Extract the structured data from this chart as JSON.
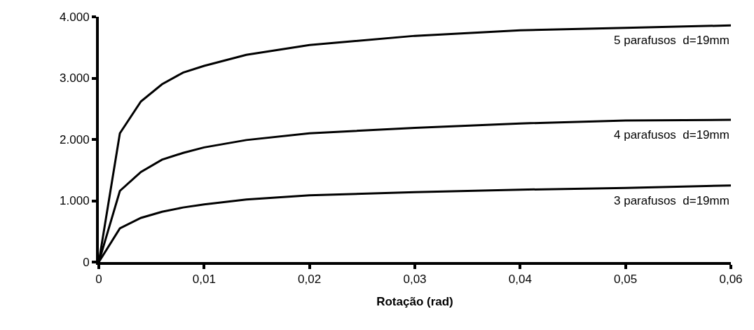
{
  "chart_data": {
    "type": "line",
    "xlabel": "Rotação (rad)",
    "x": [
      0,
      0.002,
      0.004,
      0.006,
      0.008,
      0.01,
      0.014,
      0.02,
      0.03,
      0.04,
      0.05,
      0.06
    ],
    "series": [
      {
        "name": "5 parafusos  d=19mm",
        "color": "#000000",
        "values": [
          0,
          2100,
          2620,
          2900,
          3090,
          3200,
          3380,
          3540,
          3690,
          3780,
          3820,
          3860
        ]
      },
      {
        "name": "4 parafusos  d=19mm",
        "color": "#000000",
        "values": [
          0,
          1160,
          1470,
          1670,
          1780,
          1870,
          1990,
          2100,
          2190,
          2260,
          2310,
          2320
        ]
      },
      {
        "name": "3 parafusos  d=19mm",
        "color": "#000000",
        "values": [
          0,
          550,
          720,
          820,
          890,
          940,
          1020,
          1090,
          1140,
          1180,
          1210,
          1250
        ]
      }
    ],
    "xlim": [
      0,
      0.06
    ],
    "xticks": [
      0,
      {
        "value": 0.01,
        "label": "0,01"
      },
      {
        "value": 0.02,
        "label": "0,02"
      },
      {
        "value": 0.03,
        "label": "0,03"
      },
      {
        "value": 0.04,
        "label": "0,04"
      },
      {
        "value": 0.05,
        "label": "0,05"
      },
      {
        "value": 0.06,
        "label": "0,06"
      }
    ],
    "ylim": [
      0,
      4000
    ],
    "yticks": [
      0,
      {
        "value": 1000,
        "label": "1.000"
      },
      {
        "value": 2000,
        "label": "2.000"
      },
      {
        "value": 3000,
        "label": "3.000"
      },
      {
        "value": 4000,
        "label": "4.000"
      }
    ],
    "grid": false,
    "legend": false,
    "marker": "none",
    "line_style": "solid"
  }
}
